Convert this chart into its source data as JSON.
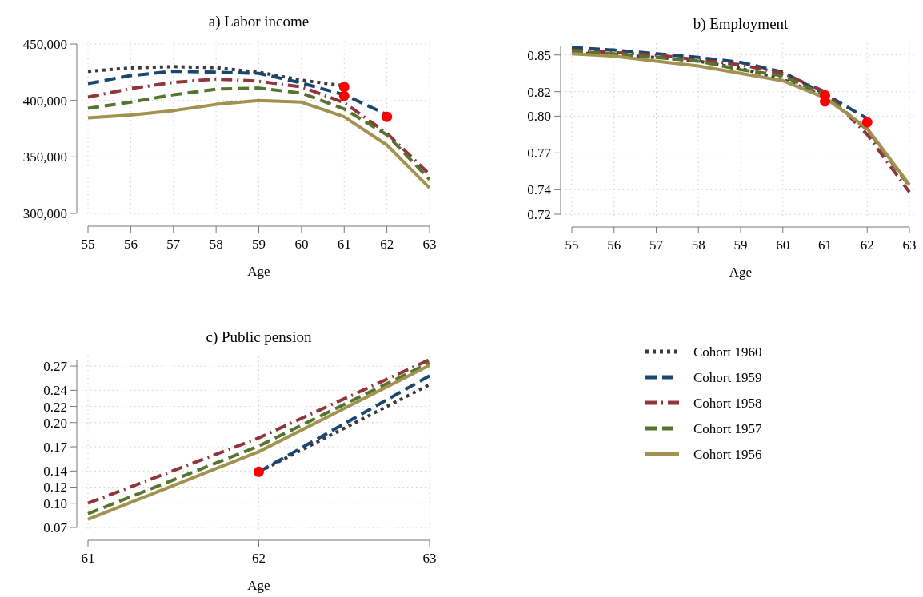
{
  "chart_data": [
    {
      "type": "line",
      "title": "a) Labor income",
      "xlabel": "Age",
      "x": [
        55,
        56,
        57,
        58,
        59,
        60,
        61,
        62,
        63
      ],
      "xlim": [
        55,
        63
      ],
      "xticks": [
        55,
        56,
        57,
        58,
        59,
        60,
        61,
        62,
        63
      ],
      "ylim": [
        300000,
        450000
      ],
      "yticks": [
        {
          "value": 300000,
          "label": "300,000"
        },
        {
          "value": 350000,
          "label": "350,000"
        },
        {
          "value": 400000,
          "label": "400,000"
        },
        {
          "value": 450000,
          "label": "450,000"
        }
      ],
      "grid": true,
      "series": [
        {
          "color": "#3a3a3a",
          "line_style": "dotted",
          "values": [
            425800,
            428800,
            430000,
            429000,
            425000,
            418000,
            413000,
            null,
            null
          ]
        },
        {
          "color": "#1a476f",
          "line_style": "dashed",
          "values": [
            415000,
            422000,
            426000,
            425000,
            424000,
            415500,
            405000,
            387500,
            null
          ]
        },
        {
          "color": "#90353b",
          "line_style": "dashdot",
          "values": [
            403000,
            410500,
            416000,
            419000,
            417000,
            412000,
            398000,
            371000,
            334500
          ]
        },
        {
          "color": "#55752f",
          "line_style": "dashed",
          "values": [
            393000,
            398500,
            405000,
            410000,
            411000,
            406500,
            392500,
            369500,
            330000
          ]
        },
        {
          "color": "#a39150",
          "line_style": "solid",
          "values": [
            384500,
            387000,
            391000,
            396500,
            400000,
            398500,
            385500,
            360500,
            322500
          ]
        },
        {
          "type": "scatter",
          "color": "#ff0000",
          "marker": "circle",
          "values": [
            null,
            null,
            null,
            null,
            null,
            null,
            412000,
            385500,
            null
          ]
        },
        {
          "type": "scatter",
          "color": "#ff0000",
          "marker": "circle",
          "values": [
            null,
            null,
            null,
            null,
            null,
            null,
            404000,
            null,
            null
          ]
        }
      ]
    },
    {
      "type": "line",
      "title": "b) Employment",
      "xlabel": "Age",
      "x": [
        55,
        56,
        57,
        58,
        59,
        60,
        61,
        62,
        63
      ],
      "xlim": [
        55,
        63
      ],
      "xticks": [
        55,
        56,
        57,
        58,
        59,
        60,
        61,
        62,
        63
      ],
      "ylim": [
        0.72,
        0.857
      ],
      "yticks": [
        0.72,
        0.74,
        0.77,
        {
          "value": 0.8,
          "label": "0.80"
        },
        0.82,
        0.85
      ],
      "grid": true,
      "series": [
        {
          "color": "#3a3a3a",
          "line_style": "dotted",
          "values": [
            0.852,
            0.85,
            0.848,
            0.845,
            0.839,
            0.83,
            0.816,
            null,
            null
          ]
        },
        {
          "color": "#1a476f",
          "line_style": "dashed",
          "values": [
            0.856,
            0.854,
            0.851,
            0.848,
            0.844,
            0.836,
            0.818,
            0.798,
            null
          ]
        },
        {
          "color": "#90353b",
          "line_style": "dashdot",
          "values": [
            0.854,
            0.852,
            0.85,
            0.846,
            0.842,
            0.835,
            0.82,
            0.785,
            0.738
          ]
        },
        {
          "color": "#55752f",
          "line_style": "dashed",
          "values": [
            0.853,
            0.851,
            0.848,
            0.845,
            0.838,
            0.833,
            0.817,
            0.789,
            0.743
          ]
        },
        {
          "color": "#a39150",
          "line_style": "solid",
          "values": [
            0.851,
            0.849,
            0.845,
            0.841,
            0.835,
            0.829,
            0.815,
            0.79,
            0.744
          ]
        },
        {
          "type": "scatter",
          "color": "#ff0000",
          "marker": "circle",
          "values": [
            null,
            null,
            null,
            null,
            null,
            null,
            0.817,
            0.795,
            null
          ]
        },
        {
          "type": "scatter",
          "color": "#ff0000",
          "marker": "circle",
          "values": [
            null,
            null,
            null,
            null,
            null,
            null,
            0.812,
            null,
            null
          ]
        }
      ]
    },
    {
      "type": "line",
      "title": "c) Public pension",
      "xlabel": "Age",
      "x": [
        61,
        62,
        63
      ],
      "xlim": [
        61,
        63
      ],
      "xticks": [
        61,
        62,
        63
      ],
      "ylim": [
        0.07,
        0.278
      ],
      "yticks": [
        0.07,
        {
          "value": 0.1,
          "label": "0.10"
        },
        0.12,
        0.14,
        0.17,
        {
          "value": 0.2,
          "label": "0.20"
        },
        0.22,
        0.24,
        0.27
      ],
      "grid": true,
      "legend": "right",
      "series": [
        {
          "name": "Cohort 1960",
          "color": "#3a3a3a",
          "line_style": "dotted",
          "values": [
            null,
            0.139,
            0.247
          ]
        },
        {
          "name": "Cohort 1959",
          "color": "#1a476f",
          "line_style": "dashed",
          "values": [
            null,
            0.139,
            0.258
          ]
        },
        {
          "name": "Cohort 1958",
          "color": "#90353b",
          "line_style": "dashdot",
          "values": [
            0.1,
            0.181,
            0.278
          ]
        },
        {
          "name": "Cohort 1957",
          "color": "#55752f",
          "line_style": "dashed",
          "values": [
            0.087,
            0.171,
            0.274
          ]
        },
        {
          "name": "Cohort 1956",
          "color": "#a39150",
          "line_style": "solid",
          "values": [
            0.08,
            0.164,
            0.271
          ]
        },
        {
          "type": "scatter",
          "color": "#ff0000",
          "marker": "circle",
          "values": [
            null,
            0.139,
            null
          ]
        }
      ]
    }
  ]
}
